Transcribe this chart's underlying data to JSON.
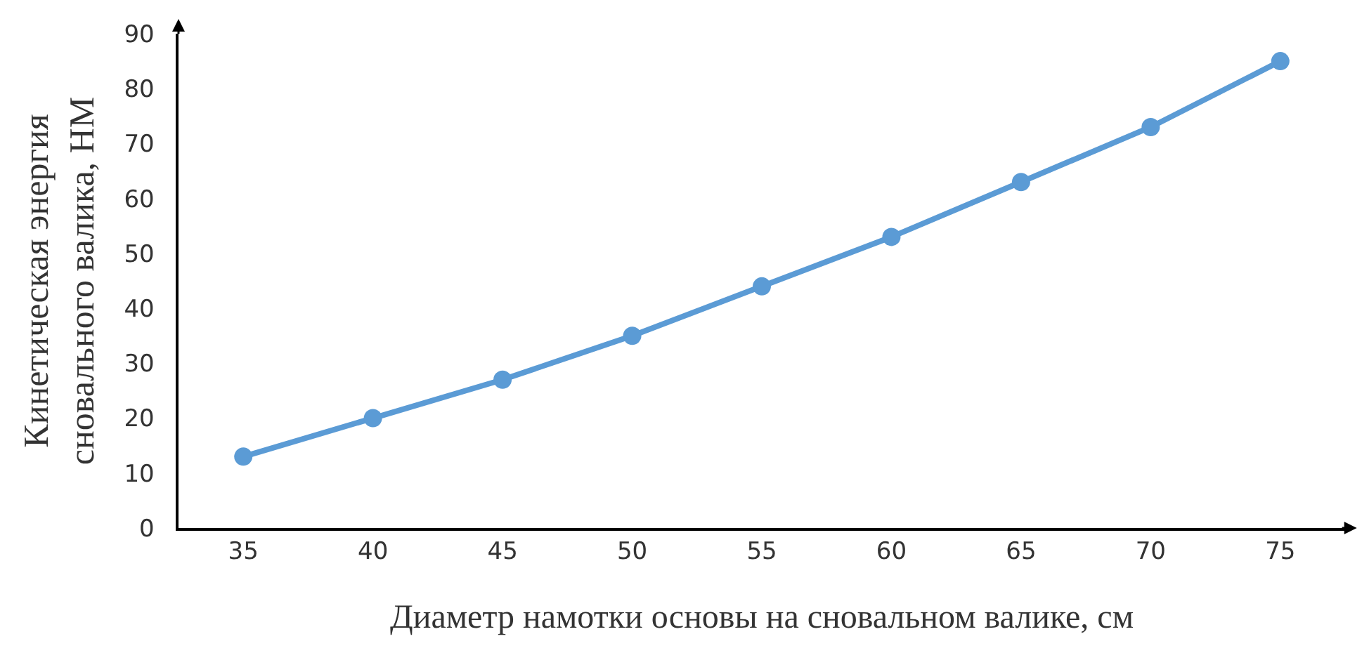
{
  "chart_data": {
    "type": "line",
    "xlabel": "Диаметр намотки основы на сновальном валике, см",
    "ylabel": "Кинетическая энергия\nсновального валика, НМ",
    "categories": [
      "35",
      "40",
      "45",
      "50",
      "55",
      "60",
      "65",
      "70",
      "75"
    ],
    "series": [
      {
        "color": "#5b9bd5",
        "values": [
          13,
          20,
          27,
          35,
          44,
          53,
          63,
          73,
          85
        ]
      }
    ],
    "ylim": [
      0,
      90
    ],
    "yticks": [
      0,
      10,
      20,
      30,
      40,
      50,
      60,
      70,
      80,
      90
    ],
    "legend": false,
    "marker": "circle",
    "line_style": "solid"
  }
}
